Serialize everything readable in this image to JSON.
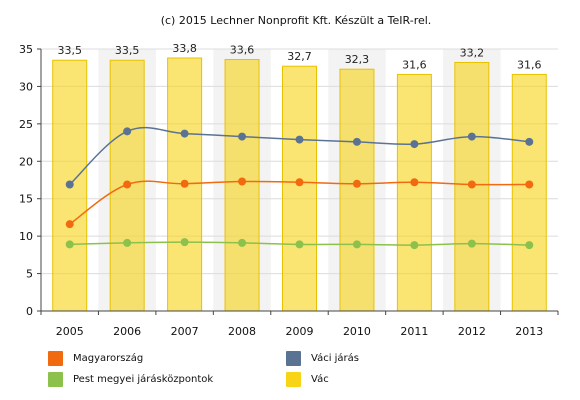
{
  "chart_data": {
    "type": "bar",
    "title": "(c) 2015 Lechner Nonprofit Kft. Készült a TeIR-rel.",
    "categories": [
      "2005",
      "2006",
      "2007",
      "2008",
      "2009",
      "2010",
      "2011",
      "2012",
      "2013"
    ],
    "ylim": [
      0,
      35
    ],
    "yticks": [
      0,
      5,
      10,
      15,
      20,
      25,
      30,
      35
    ],
    "grid": true,
    "legend_position": "bottom",
    "bar_series": {
      "name": "Vác",
      "color": "#f7d415",
      "values": [
        33.5,
        33.5,
        33.8,
        33.6,
        32.7,
        32.3,
        31.6,
        33.2,
        31.6
      ],
      "labels": [
        "33,5",
        "33,5",
        "33,8",
        "33,6",
        "32,7",
        "32,3",
        "31,6",
        "33,2",
        "31,6"
      ]
    },
    "line_series": [
      {
        "name": "Váci járás",
        "color": "#5b7393",
        "values": [
          16.9,
          24.0,
          23.7,
          23.3,
          22.9,
          22.6,
          22.3,
          23.3,
          22.6
        ]
      },
      {
        "name": "Magyarország",
        "color": "#f26a10",
        "values": [
          11.6,
          16.9,
          17.0,
          17.3,
          17.2,
          17.0,
          17.2,
          16.9,
          16.9
        ]
      },
      {
        "name": "Pest megyei járásközpontok",
        "color": "#8cc14c",
        "values": [
          8.9,
          9.1,
          9.2,
          9.1,
          8.9,
          8.9,
          8.8,
          9.0,
          8.8
        ]
      }
    ]
  },
  "legend": [
    {
      "label": "Magyarország",
      "color": "#f26a10"
    },
    {
      "label": "Váci járás",
      "color": "#5b7393"
    },
    {
      "label": "Pest megyei járásközpontok",
      "color": "#8cc14c"
    },
    {
      "label": "Vác",
      "color": "#f7d415"
    }
  ]
}
